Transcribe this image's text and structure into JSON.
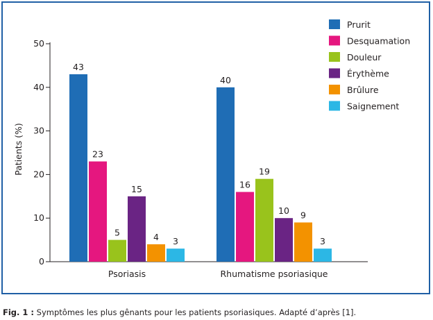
{
  "caption": {
    "label": "Fig. 1 :",
    "text": " Symptômes les plus gênants pour les patients psoriasiques. Adapté d’après [1]."
  },
  "chart_data": {
    "type": "bar",
    "categories": [
      "Psoriasis",
      "Rhumatisme psoriasique"
    ],
    "ylabel": "Patients (%)",
    "xlabel": "",
    "ylim": [
      0,
      50
    ],
    "yticks": [
      0,
      10,
      20,
      30,
      40,
      50
    ],
    "legend_position": "top-right",
    "grid": false,
    "series": [
      {
        "name": "Prurit",
        "color": "#1f6db5",
        "values": [
          43,
          40
        ]
      },
      {
        "name": "Desquamation",
        "color": "#e5177f",
        "values": [
          23,
          16
        ]
      },
      {
        "name": "Douleur",
        "color": "#99c31c",
        "values": [
          5,
          19
        ]
      },
      {
        "name": "Érythème",
        "color": "#6a2484",
        "values": [
          15,
          10
        ]
      },
      {
        "name": "Brûlure",
        "color": "#f39200",
        "values": [
          4,
          9
        ]
      },
      {
        "name": "Saignement",
        "color": "#2cb7e5",
        "values": [
          3,
          3
        ]
      }
    ]
  }
}
